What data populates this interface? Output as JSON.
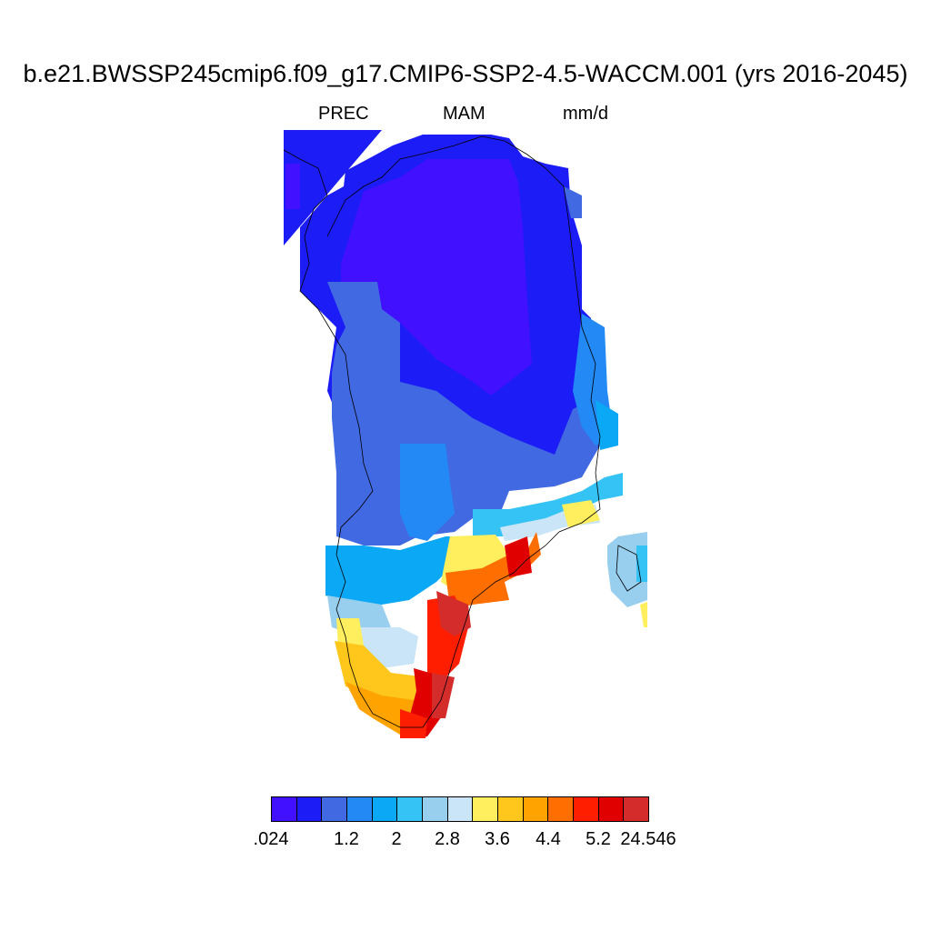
{
  "title": "b.e21.BWSSP245cmip6.f09_g17.CMIP6-SSP2-4.5-WACCM.001 (yrs 2016-2045)",
  "subtitle": {
    "variable": "PREC",
    "season": "MAM",
    "units": "mm/d"
  },
  "colorbar": {
    "colors": [
      "#4010ff",
      "#1c1cf6",
      "#4169e1",
      "#2389f5",
      "#0aa8f5",
      "#35c3f6",
      "#98cfef",
      "#c9e5f7",
      "#ffef5e",
      "#ffc61c",
      "#ffa300",
      "#ff6e00",
      "#ff1e00",
      "#e10000",
      "#d42b2b"
    ],
    "labels": [
      ".024",
      "1.2",
      "2",
      "2.8",
      "3.6",
      "4.4",
      "5.2",
      "24.546"
    ]
  }
}
